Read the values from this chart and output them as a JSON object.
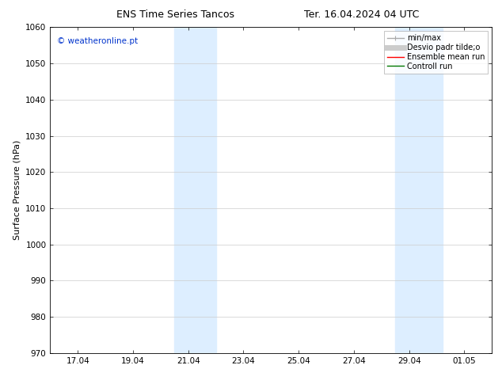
{
  "title_left": "ENS Time Series Tancos",
  "title_right": "Ter. 16.04.2024 04 UTC",
  "ylabel": "Surface Pressure (hPa)",
  "ylim": [
    970,
    1060
  ],
  "yticks": [
    970,
    980,
    990,
    1000,
    1010,
    1020,
    1030,
    1040,
    1050,
    1060
  ],
  "xtick_labels": [
    "17.04",
    "19.04",
    "21.04",
    "23.04",
    "25.04",
    "27.04",
    "29.04",
    "01.05"
  ],
  "xlim": [
    0,
    16
  ],
  "xtick_positions": [
    1,
    3,
    5,
    7,
    9,
    11,
    13,
    15
  ],
  "shade_regions": [
    {
      "x_start": 4.5,
      "x_end": 6.0
    },
    {
      "x_start": 12.5,
      "x_end": 14.2
    }
  ],
  "shade_color": "#ddeeff",
  "background_color": "#ffffff",
  "watermark_text": "© weatheronline.pt",
  "watermark_color": "#0033cc",
  "legend_labels": [
    "min/max",
    "Desvio padr tilde;o",
    "Ensemble mean run",
    "Controll run"
  ],
  "legend_colors": [
    "#aaaaaa",
    "#cccccc",
    "#ff0000",
    "#007700"
  ],
  "grid_color": "#cccccc",
  "title_fontsize": 9,
  "label_fontsize": 8,
  "tick_fontsize": 7.5,
  "watermark_fontsize": 7.5,
  "legend_fontsize": 7
}
